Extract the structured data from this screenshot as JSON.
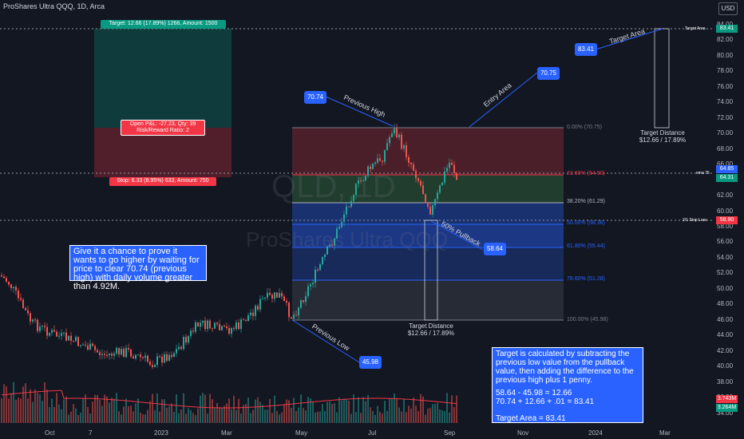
{
  "header": {
    "symbol_line": "ProShares Ultra QQQ, 1D, Arca",
    "currency": "USD"
  },
  "watermark": {
    "ticker": "QLD, 1D",
    "name": "ProShares Ultra QQQ"
  },
  "position_tool": {
    "target_label": "Target: 12.66 (17.89%) 1266, Amount: 1500",
    "open_pl_label": "Open P&L: -27.23, Qty: 39",
    "risk_reward_label": "Risk/Reward Ratio: 2",
    "stop_label": "Stop: 6.33 (8.95%) 633, Amount: 750"
  },
  "annotations": {
    "give_chance_note": "Give it a chance to prove it wants to go higher by waiting for price to clear 70.74 (previous high) with daily volume greater than 4.92M.",
    "calc_note_lines": [
      "Target is calculated by subtracting the previous low value from the pullback value, then adding the difference to the previous high plus 1 penny.",
      "58.64 - 45.98 = 12.66",
      "70.74 + 12.66 + .01 = 83.41",
      "Target Area = 83.41"
    ],
    "previous_high_label": "Previous High",
    "previous_high_value": "70.74",
    "entry_area_label": "Entry Area",
    "entry_area_value": "70.75",
    "target_area_label": "Target Area",
    "target_area_value": "83.41",
    "pullback_label": "50% Pullback",
    "pullback_value": "58.64",
    "previous_low_label": "Previous Low",
    "previous_low_value": "45.98",
    "target_distance_title": "Target Distance",
    "target_distance_value": "$12.66 / 17.89%",
    "target_distance_title_2": "Target Distance",
    "target_distance_value_2": "$12.66 / 17.89%"
  },
  "fib_levels": [
    {
      "label": "0.00% (70.75)",
      "color": "#787b86"
    },
    {
      "label": "23.60% (64.90)",
      "color": "#f23645"
    },
    {
      "label": "38.20% (61.29)",
      "color": "#b2b5be"
    },
    {
      "label": "50.00% (58.36)",
      "color": "#2962ff"
    },
    {
      "label": "61.80% (55.44)",
      "color": "#2962ff"
    },
    {
      "label": "78.60% (51.28)",
      "color": "#2962ff"
    },
    {
      "label": "100.00% (45.98)",
      "color": "#787b86"
    }
  ],
  "price_axis": {
    "ticks": [
      "84.00",
      "82.00",
      "80.00",
      "78.00",
      "76.00",
      "74.00",
      "72.00",
      "70.00",
      "68.00",
      "66.00",
      "62.00",
      "60.00",
      "58.00",
      "56.00",
      "54.00",
      "52.00",
      "50.00",
      "48.00",
      "46.00",
      "44.00",
      "42.00",
      "40.00",
      "38.00",
      "36.00",
      "34.00"
    ],
    "line_labels": {
      "target_area": "Target Area",
      "ema": "ema 75",
      "stop_loss": "2/1 Stop Loss"
    },
    "tags": {
      "target": "83.41",
      "price1": "64.85",
      "price2": "64.31",
      "stop": "58.90",
      "vol1": "3.743M",
      "vol2": "3.264M"
    }
  },
  "time_axis": {
    "ticks": [
      "Oct",
      "7",
      "2023",
      "Mar",
      "May",
      "Jul",
      "Sep",
      "Nov",
      "2024",
      "Mar"
    ]
  },
  "colors": {
    "background": "#131722",
    "bull": "#26a69a",
    "bear": "#ef5350",
    "accent": "#2962ff",
    "ema": "#f23645"
  }
}
